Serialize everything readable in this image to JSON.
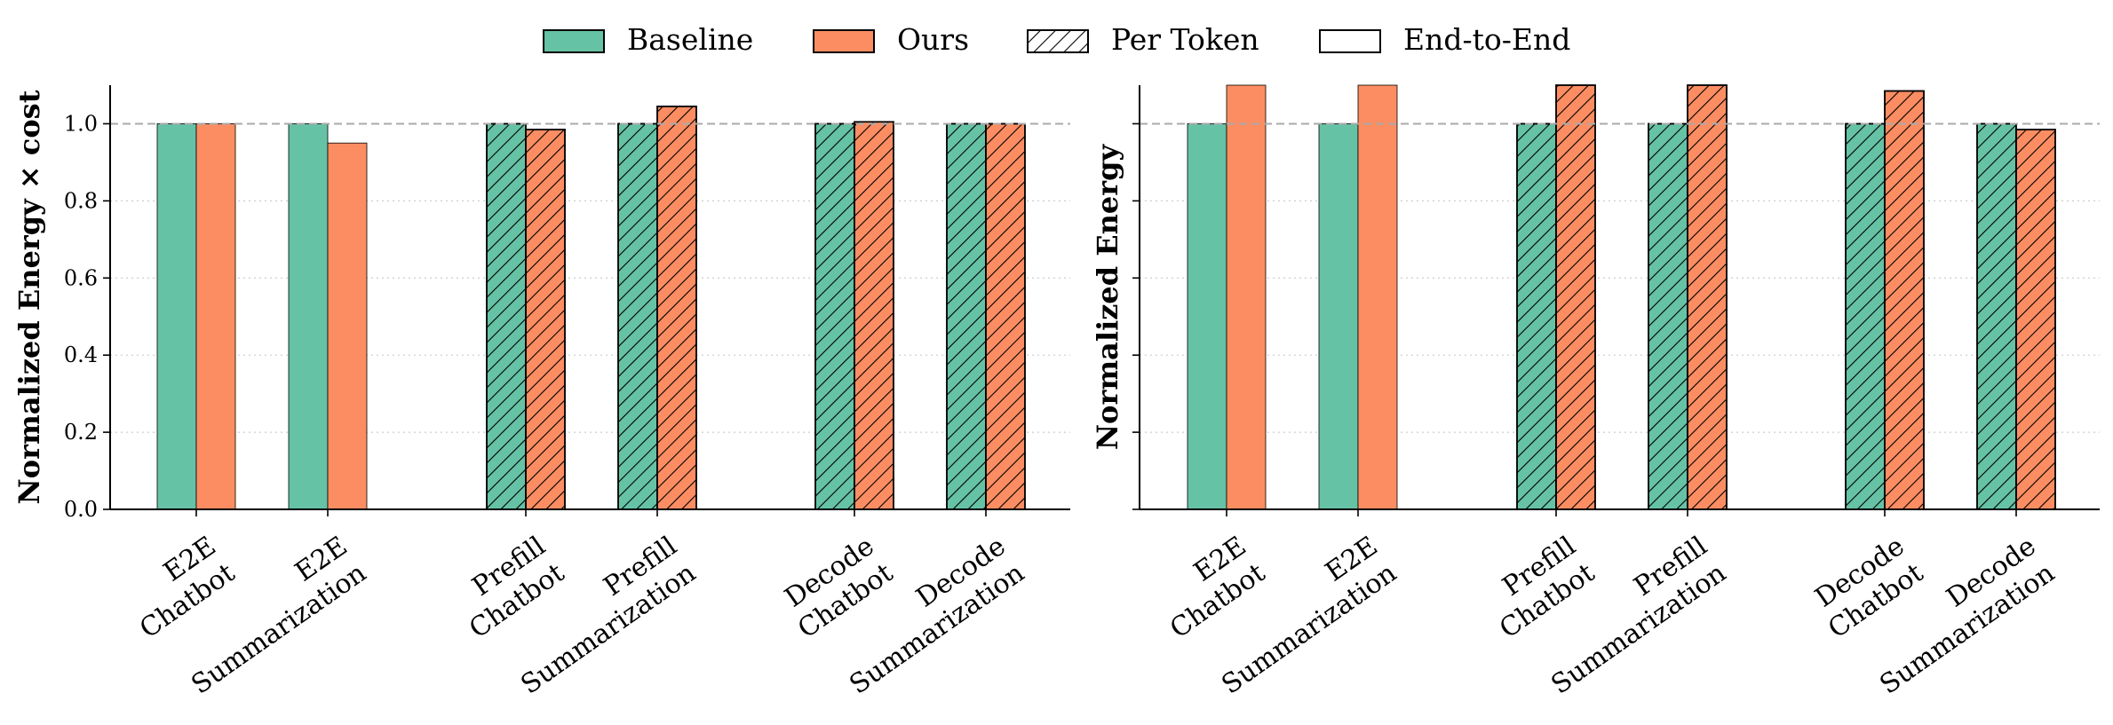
{
  "legend": {
    "items": [
      {
        "label": "Baseline",
        "kind": "baseline"
      },
      {
        "label": "Ours",
        "kind": "ours"
      },
      {
        "label": "Per Token",
        "kind": "hatch"
      },
      {
        "label": "End-to-End",
        "kind": "plain"
      }
    ],
    "placement": "top-center"
  },
  "colors": {
    "baseline": "#66c2a5",
    "ours": "#fc8d62",
    "reference_line": "#aaaaaa",
    "grid": "#cccccc"
  },
  "chart_data": [
    {
      "type": "bar",
      "ylabel": "Normalized Energy × cost",
      "ylim": [
        0,
        1.1
      ],
      "yticks": [
        "0.0",
        "0.2",
        "0.4",
        "0.6",
        "0.8",
        "1.0"
      ],
      "reference_line": 1.0,
      "grid": "horizontal-dotted",
      "categories": [
        [
          "E2E",
          "Chatbot"
        ],
        [
          "E2E",
          "Summarization"
        ],
        [
          "Prefill",
          "Chatbot"
        ],
        [
          "Prefill",
          "Summarization"
        ],
        [
          "Decode",
          "Chatbot"
        ],
        [
          "Decode",
          "Summarization"
        ]
      ],
      "hatched": [
        false,
        false,
        true,
        true,
        true,
        true
      ],
      "series": [
        {
          "name": "Baseline",
          "values": [
            1.0,
            1.0,
            1.0,
            1.0,
            1.0,
            1.0
          ]
        },
        {
          "name": "Ours",
          "values": [
            1.0,
            0.95,
            0.985,
            1.045,
            1.005,
            1.0
          ]
        }
      ]
    },
    {
      "type": "bar",
      "ylabel": "Normalized Energy",
      "ylim": [
        0,
        1.1
      ],
      "reference_line": 1.0,
      "grid": "horizontal-dotted",
      "categories": [
        [
          "E2E",
          "Chatbot"
        ],
        [
          "E2E",
          "Summarization"
        ],
        [
          "Prefill",
          "Chatbot"
        ],
        [
          "Prefill",
          "Summarization"
        ],
        [
          "Decode",
          "Chatbot"
        ],
        [
          "Decode",
          "Summarization"
        ]
      ],
      "hatched": [
        false,
        false,
        true,
        true,
        true,
        true
      ],
      "series": [
        {
          "name": "Baseline",
          "values": [
            1.0,
            1.0,
            1.0,
            1.0,
            1.0,
            1.0
          ]
        },
        {
          "name": "Ours",
          "values": [
            1.1,
            1.1,
            1.1,
            1.1,
            1.085,
            0.985
          ]
        }
      ]
    }
  ]
}
